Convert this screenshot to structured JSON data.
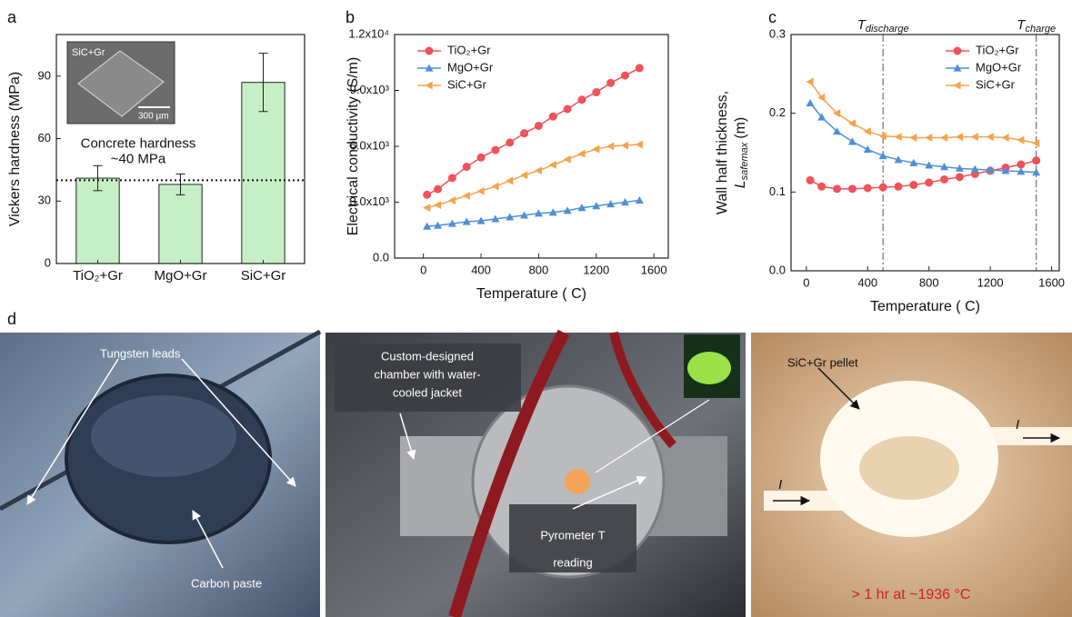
{
  "chart_data": [
    {
      "type": "bar",
      "panel": "a",
      "ylabel": "Vickers hardness (MPa)",
      "categories": [
        "TiO₂+Gr",
        "MgO+Gr",
        "SiC+Gr"
      ],
      "values": [
        41,
        38,
        87
      ],
      "errors": [
        6,
        5,
        14
      ],
      "color": "#c6efc6",
      "ylim": [
        0,
        110
      ],
      "yticks": [
        0,
        30,
        60,
        90
      ],
      "hline": 40,
      "annotation": [
        "Concrete hardness",
        "~40 MPa"
      ],
      "inset_label": "SiC+Gr",
      "scale_bar": "300 µm"
    },
    {
      "type": "line",
      "panel": "b",
      "xlabel": "Temperature ( C)",
      "ylabel": "Electrical conductivity (S/m)",
      "x": [
        25,
        100,
        200,
        300,
        400,
        500,
        600,
        700,
        800,
        900,
        1000,
        1100,
        1200,
        1300,
        1400,
        1500
      ],
      "series": [
        {
          "name": "TiO₂+Gr",
          "color": "#f0525a",
          "marker": "circle",
          "values": [
            3400,
            3700,
            4300,
            4900,
            5400,
            5800,
            6200,
            6700,
            7100,
            7600,
            8000,
            8500,
            8900,
            9400,
            9800,
            10200
          ]
        },
        {
          "name": "MgO+Gr",
          "color": "#4f8fd8",
          "marker": "triangle",
          "values": [
            1700,
            1750,
            1850,
            1950,
            2000,
            2100,
            2200,
            2300,
            2400,
            2450,
            2550,
            2700,
            2800,
            2900,
            3000,
            3100
          ]
        },
        {
          "name": "SiC+Gr",
          "color": "#f7a24b",
          "marker": "left-triangle",
          "values": [
            2700,
            2850,
            3100,
            3350,
            3600,
            3850,
            4150,
            4450,
            4700,
            5000,
            5300,
            5600,
            5850,
            6000,
            6050,
            6100
          ]
        }
      ],
      "xlim": [
        -200,
        1700
      ],
      "xticks": [
        0,
        400,
        800,
        1200,
        1600
      ],
      "ylim": [
        0,
        12000
      ],
      "yticks": [
        {
          "value": 0,
          "label": "0.0"
        },
        {
          "value": 3000,
          "label": "3.0x10³"
        },
        {
          "value": 6000,
          "label": "6.0x10³"
        },
        {
          "value": 9000,
          "label": "9.0x10³"
        },
        {
          "value": 12000,
          "label": "1.2x10⁴"
        }
      ],
      "legend": "upper-left"
    },
    {
      "type": "line",
      "panel": "c",
      "xlabel": "Temperature ( C)",
      "ylabel": "Wall half thickness,",
      "ylabel2": [
        "L",
        "safemax",
        "(m)"
      ],
      "x": [
        25,
        100,
        200,
        300,
        400,
        500,
        600,
        700,
        800,
        900,
        1000,
        1100,
        1200,
        1300,
        1400,
        1500
      ],
      "series": [
        {
          "name": "TiO₂+Gr",
          "color": "#f0525a",
          "marker": "circle",
          "values": [
            0.115,
            0.107,
            0.104,
            0.104,
            0.105,
            0.106,
            0.107,
            0.109,
            0.112,
            0.116,
            0.119,
            0.123,
            0.127,
            0.131,
            0.135,
            0.14
          ]
        },
        {
          "name": "MgO+Gr",
          "color": "#4f8fd8",
          "marker": "triangle",
          "values": [
            0.213,
            0.195,
            0.177,
            0.164,
            0.154,
            0.146,
            0.141,
            0.137,
            0.134,
            0.132,
            0.13,
            0.129,
            0.128,
            0.127,
            0.126,
            0.125
          ]
        },
        {
          "name": "SiC+Gr",
          "color": "#f7a24b",
          "marker": "left-triangle",
          "values": [
            0.24,
            0.22,
            0.2,
            0.187,
            0.177,
            0.171,
            0.17,
            0.169,
            0.169,
            0.169,
            0.17,
            0.17,
            0.17,
            0.169,
            0.166,
            0.162
          ]
        }
      ],
      "xlim": [
        -100,
        1650
      ],
      "xticks": [
        0,
        400,
        800,
        1200,
        1600
      ],
      "ylim": [
        0,
        0.3
      ],
      "yticks": [
        {
          "value": 0,
          "label": "0.0"
        },
        0.1,
        0.2,
        0.3
      ],
      "vlines": [
        {
          "value": 500,
          "label": "T",
          "sub": "discharge"
        },
        {
          "value": 1500,
          "label": "T",
          "sub": "charge"
        }
      ],
      "legend": "upper-right"
    }
  ],
  "photos": {
    "panel": "d",
    "left": {
      "leads": "Tungsten leads",
      "paste": "Carbon paste"
    },
    "middle": {
      "chamber": [
        "Custom-designed",
        "chamber with water-",
        "cooled jacket"
      ],
      "pyrometer": [
        "Pyrometer T",
        "reading"
      ]
    },
    "right": {
      "pellet": "SiC+Gr pellet",
      "current": [
        "I",
        "I"
      ],
      "condition": "> 1 hr at ~1936 °C"
    }
  }
}
